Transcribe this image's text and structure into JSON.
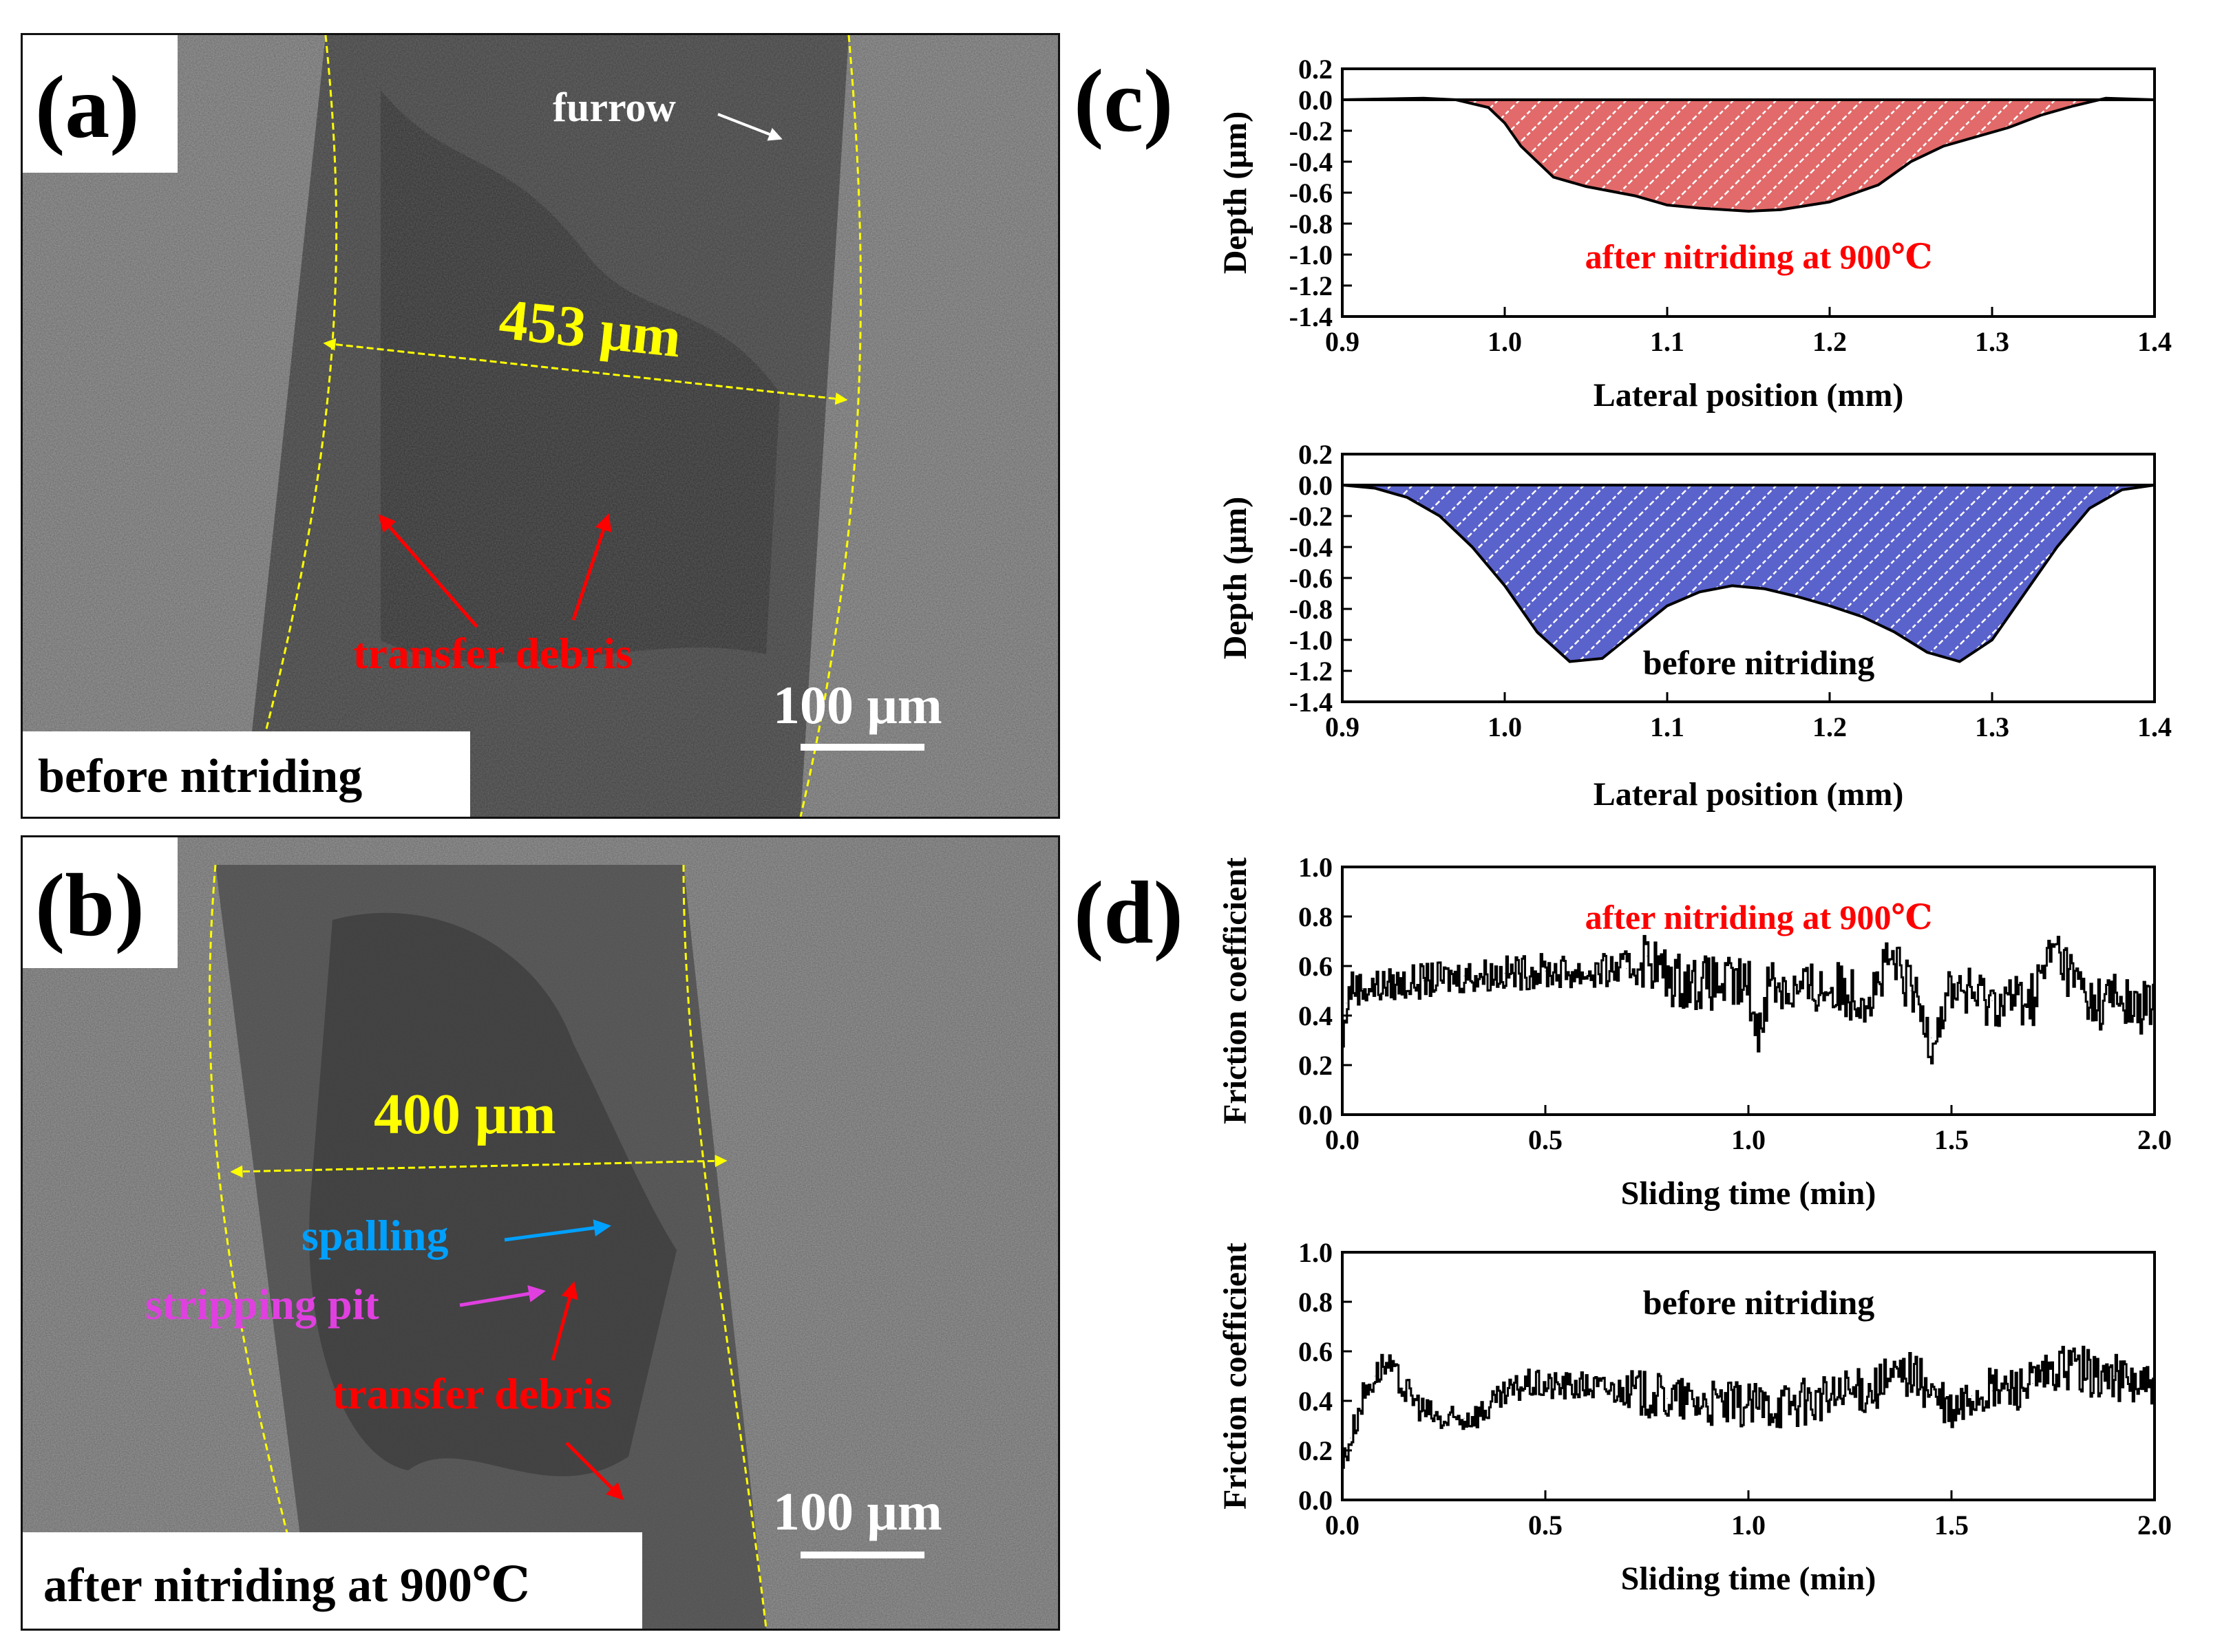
{
  "figure": {
    "colors": {
      "yellow": "#ffff00",
      "red": "#ff0000",
      "blue": "#00a0ff",
      "magenta": "#e040e0",
      "white": "#ffffff",
      "red_fill": "#e05050",
      "blue_fill": "#5058c8"
    },
    "panel_a": {
      "letter": "(a)",
      "caption": "before nitriding",
      "width_label": "453 μm",
      "scale_label": "100 μm",
      "labels": {
        "furrow": "furrow",
        "transfer_debris": "transfer debris"
      }
    },
    "panel_b": {
      "letter": "(b)",
      "caption": "after nitriding at 900℃",
      "width_label": "400 μm",
      "scale_label": "100 μm",
      "labels": {
        "spalling": "spalling",
        "stripping_pit": "stripping pit",
        "transfer_debris": "transfer debris"
      }
    },
    "panel_c": {
      "letter": "(c)"
    },
    "panel_d": {
      "letter": "(d)"
    }
  },
  "chart_data": [
    {
      "id": "c_top",
      "type": "area",
      "title": "",
      "annotation": "after nitriding at 900℃",
      "xlabel": "Lateral position (mm)",
      "ylabel": "Depth (μm)",
      "xlim": [
        0.9,
        1.4
      ],
      "ylim": [
        -1.4,
        0.2
      ],
      "xticks": [
        "0.9",
        "1.0",
        "1.1",
        "1.2",
        "1.3",
        "1.4"
      ],
      "yticks": [
        "0.2",
        "0.0",
        "-0.2",
        "-0.4",
        "-0.6",
        "-0.8",
        "-1.0",
        "-1.2",
        "-1.4"
      ],
      "x": [
        0.9,
        0.95,
        0.97,
        0.99,
        1.0,
        1.01,
        1.03,
        1.05,
        1.08,
        1.1,
        1.12,
        1.15,
        1.17,
        1.2,
        1.23,
        1.25,
        1.27,
        1.29,
        1.31,
        1.33,
        1.35,
        1.37,
        1.4
      ],
      "y": [
        0.0,
        0.01,
        0.0,
        -0.05,
        -0.15,
        -0.3,
        -0.5,
        -0.56,
        -0.62,
        -0.68,
        -0.7,
        -0.72,
        -0.71,
        -0.66,
        -0.55,
        -0.4,
        -0.3,
        -0.24,
        -0.18,
        -0.1,
        -0.04,
        0.01,
        0.0
      ]
    },
    {
      "id": "c_bottom",
      "type": "area",
      "title": "",
      "annotation": "before nitriding",
      "xlabel": "Lateral position (mm)",
      "ylabel": "Depth (μm)",
      "xlim": [
        0.9,
        1.4
      ],
      "ylim": [
        -1.4,
        0.2
      ],
      "xticks": [
        "0.9",
        "1.0",
        "1.1",
        "1.2",
        "1.3",
        "1.4"
      ],
      "yticks": [
        "0.2",
        "0.0",
        "-0.2",
        "-0.4",
        "-0.6",
        "-0.8",
        "-1.0",
        "-1.2",
        "-1.4"
      ],
      "x": [
        0.9,
        0.92,
        0.94,
        0.96,
        0.98,
        1.0,
        1.02,
        1.04,
        1.06,
        1.08,
        1.1,
        1.12,
        1.14,
        1.16,
        1.18,
        1.2,
        1.22,
        1.24,
        1.26,
        1.28,
        1.3,
        1.32,
        1.34,
        1.36,
        1.38,
        1.4
      ],
      "y": [
        0.0,
        -0.02,
        -0.08,
        -0.2,
        -0.4,
        -0.65,
        -0.95,
        -1.14,
        -1.12,
        -0.95,
        -0.78,
        -0.69,
        -0.65,
        -0.67,
        -0.72,
        -0.78,
        -0.85,
        -0.95,
        -1.08,
        -1.14,
        -1.0,
        -0.7,
        -0.4,
        -0.15,
        -0.03,
        0.0
      ]
    },
    {
      "id": "d_top",
      "type": "line",
      "title": "",
      "annotation": "after nitriding at 900℃",
      "xlabel": "Sliding time (min)",
      "ylabel": "Friction coefficient",
      "xlim": [
        0.0,
        2.0
      ],
      "ylim": [
        0.0,
        1.0
      ],
      "xticks": [
        "0.0",
        "0.5",
        "1.0",
        "1.5",
        "2.0"
      ],
      "yticks": [
        "0.0",
        "0.2",
        "0.4",
        "0.6",
        "0.8",
        "1.0"
      ],
      "x": [
        0.0,
        0.01,
        0.02,
        0.05,
        0.1,
        0.2,
        0.3,
        0.4,
        0.5,
        0.6,
        0.7,
        0.75,
        0.8,
        0.9,
        1.0,
        1.02,
        1.05,
        1.1,
        1.2,
        1.3,
        1.35,
        1.4,
        1.45,
        1.5,
        1.55,
        1.6,
        1.7,
        1.75,
        1.8,
        1.85,
        1.9,
        1.95,
        2.0
      ],
      "y": [
        0.28,
        0.45,
        0.52,
        0.51,
        0.52,
        0.54,
        0.56,
        0.57,
        0.58,
        0.57,
        0.59,
        0.64,
        0.55,
        0.53,
        0.52,
        0.32,
        0.55,
        0.5,
        0.51,
        0.48,
        0.62,
        0.5,
        0.31,
        0.52,
        0.48,
        0.46,
        0.47,
        0.68,
        0.55,
        0.44,
        0.48,
        0.42,
        0.45
      ]
    },
    {
      "id": "d_bottom",
      "type": "line",
      "title": "",
      "annotation": "before nitriding",
      "xlabel": "Sliding time (min)",
      "ylabel": "Friction coefficient",
      "xlim": [
        0.0,
        2.0
      ],
      "ylim": [
        0.0,
        1.0
      ],
      "xticks": [
        "0.0",
        "0.5",
        "1.0",
        "1.5",
        "2.0"
      ],
      "yticks": [
        "0.0",
        "0.2",
        "0.4",
        "0.6",
        "0.8",
        "1.0"
      ],
      "x": [
        0.0,
        0.02,
        0.05,
        0.08,
        0.1,
        0.12,
        0.15,
        0.2,
        0.25,
        0.3,
        0.35,
        0.4,
        0.45,
        0.5,
        0.6,
        0.7,
        0.8,
        0.9,
        1.0,
        1.1,
        1.2,
        1.3,
        1.4,
        1.45,
        1.5,
        1.55,
        1.6,
        1.7,
        1.8,
        1.85,
        1.9,
        2.0
      ],
      "y": [
        0.15,
        0.25,
        0.42,
        0.5,
        0.55,
        0.52,
        0.45,
        0.36,
        0.31,
        0.33,
        0.36,
        0.42,
        0.47,
        0.46,
        0.46,
        0.44,
        0.41,
        0.39,
        0.38,
        0.39,
        0.41,
        0.45,
        0.52,
        0.43,
        0.34,
        0.42,
        0.44,
        0.47,
        0.55,
        0.5,
        0.5,
        0.45
      ]
    }
  ]
}
